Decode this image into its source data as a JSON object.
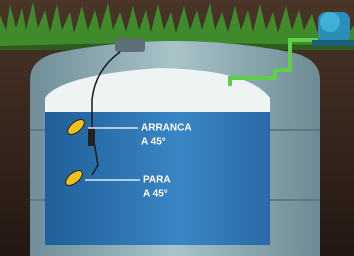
{
  "labels": [
    {
      "line1": "ARRANCA",
      "line2": "A 45°"
    },
    {
      "line1": "PARA",
      "line2": "A 45°"
    }
  ]
}
